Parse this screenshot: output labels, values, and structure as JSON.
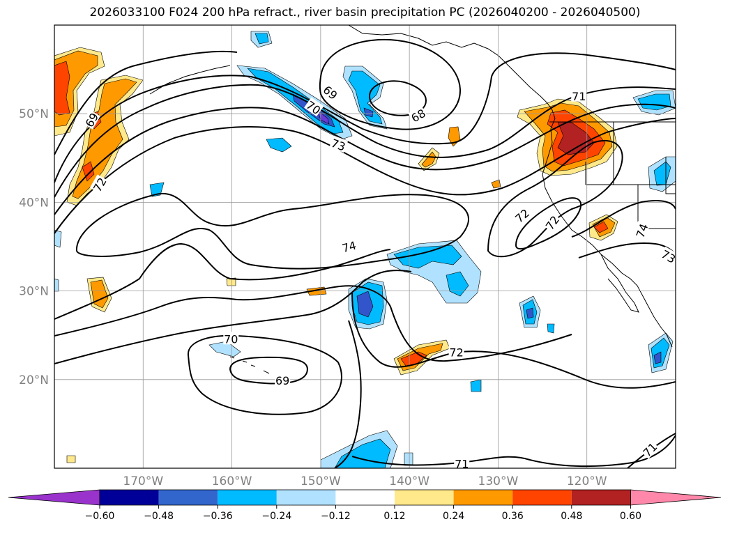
{
  "title": "2026033100 F024 200 hPa refract., river basin precipitation PC (2026040200 - 2026040500)",
  "map": {
    "lon_range": [
      -180,
      -110
    ],
    "lat_range": [
      10,
      60
    ],
    "lat_ticks": [
      {
        "lat": 50,
        "label": "50°N"
      },
      {
        "lat": 40,
        "label": "40°N"
      },
      {
        "lat": 30,
        "label": "30°N"
      },
      {
        "lat": 20,
        "label": "20°N"
      }
    ],
    "lon_ticks": [
      {
        "lon": -170,
        "label": "170°W"
      },
      {
        "lon": -160,
        "label": "160°W"
      },
      {
        "lon": -150,
        "label": "150°W"
      },
      {
        "lon": -140,
        "label": "140°W"
      },
      {
        "lon": -130,
        "label": "130°W"
      },
      {
        "lon": -120,
        "label": "120°W"
      }
    ]
  },
  "contour_labels": [
    {
      "text": "69",
      "lon": -175.8,
      "lat": 49.3,
      "rot": -60
    },
    {
      "text": "72",
      "lon": -174.9,
      "lat": 42.0,
      "rot": -60
    },
    {
      "text": "69",
      "lon": -148.9,
      "lat": 52.4,
      "rot": 40
    },
    {
      "text": "70",
      "lon": -150.8,
      "lat": 50.7,
      "rot": 35
    },
    {
      "text": "68",
      "lon": -139.0,
      "lat": 49.8,
      "rot": -30
    },
    {
      "text": "73",
      "lon": -148.0,
      "lat": 46.5,
      "rot": 20
    },
    {
      "text": "71",
      "lon": -120.9,
      "lat": 52.0,
      "rot": 0
    },
    {
      "text": "72",
      "lon": -127.3,
      "lat": 38.5,
      "rot": -40
    },
    {
      "text": "72",
      "lon": -123.9,
      "lat": 37.7,
      "rot": -55
    },
    {
      "text": "74",
      "lon": -113.8,
      "lat": 36.8,
      "rot": -70
    },
    {
      "text": "73",
      "lon": -110.8,
      "lat": 33.9,
      "rot": 30
    },
    {
      "text": "74",
      "lon": -146.8,
      "lat": 35.0,
      "rot": -15
    },
    {
      "text": "70",
      "lon": -160.1,
      "lat": 24.6,
      "rot": 0
    },
    {
      "text": "69",
      "lon": -154.3,
      "lat": 19.9,
      "rot": 0
    },
    {
      "text": "72",
      "lon": -134.7,
      "lat": 23.1,
      "rot": 0
    },
    {
      "text": "71",
      "lon": -134.1,
      "lat": 10.5,
      "rot": 0
    },
    {
      "text": "71",
      "lon": -112.9,
      "lat": 12.1,
      "rot": -45
    }
  ],
  "colorbar": {
    "tick_labels": [
      "−0.60",
      "−0.48",
      "−0.36",
      "−0.24",
      "−0.12",
      "0.12",
      "0.24",
      "0.36",
      "0.48",
      "0.60"
    ],
    "colors": [
      "#9933cc",
      "#000099",
      "#3366cc",
      "#00bbff",
      "#b0e2ff",
      "#ffffff",
      "#ffe98a",
      "#ff9900",
      "#ff4400",
      "#b22222",
      "#ff88aa"
    ]
  },
  "colors": {
    "blue_dark": "#3355cc",
    "blue_mid": "#00bbff",
    "blue_light": "#b0e2ff",
    "orange_light": "#ffe98a",
    "orange": "#ff9900",
    "red_orange": "#ff4400",
    "dark_red": "#b22222",
    "purple": "#6a3bd8"
  }
}
